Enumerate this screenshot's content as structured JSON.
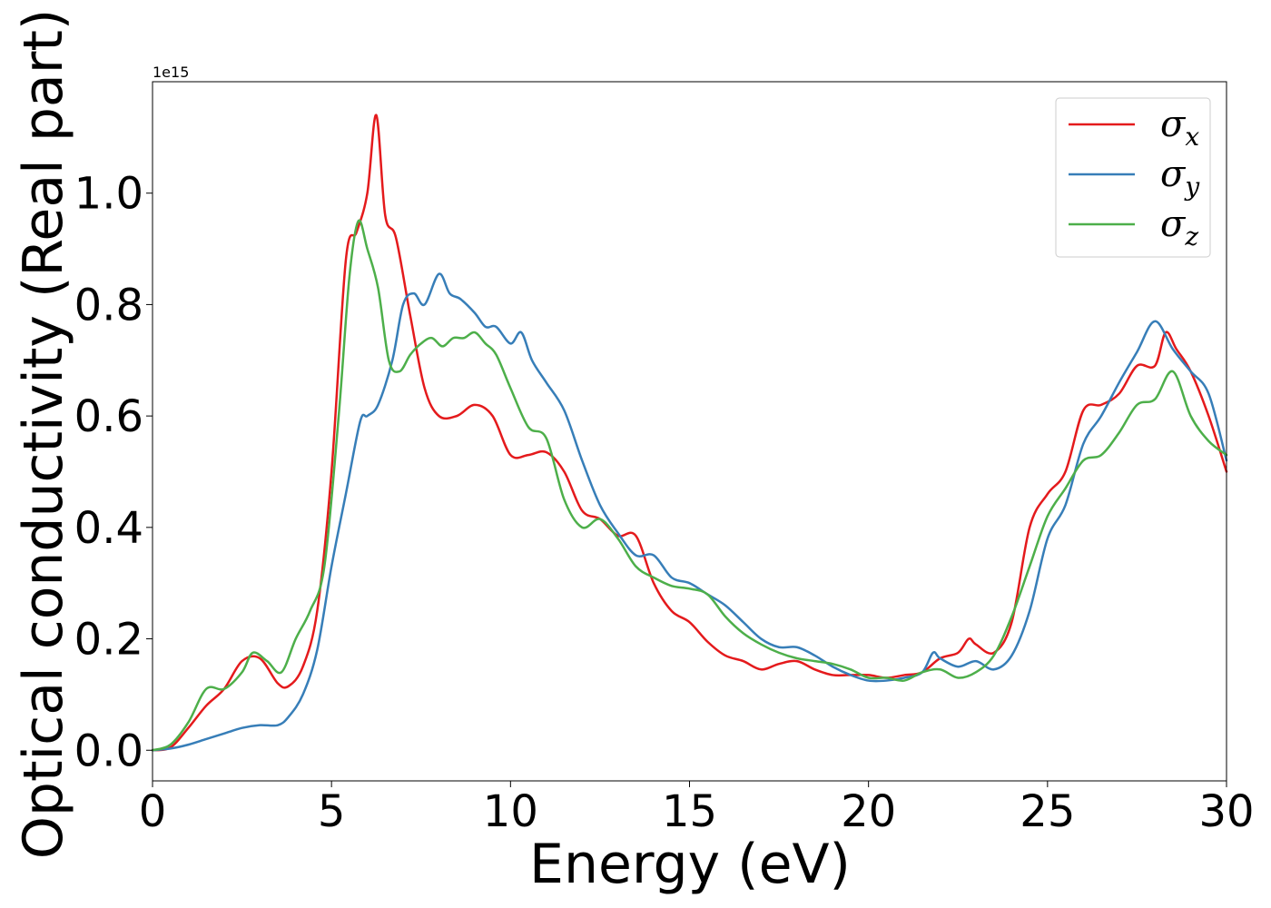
{
  "chart_data": {
    "type": "line",
    "xlabel": "Energy (eV)",
    "ylabel": "Optical conductivity (Real part)",
    "y_offset_text": "1e15",
    "xlim": [
      0,
      30
    ],
    "ylim": [
      -0.055,
      1.2
    ],
    "xticks": [
      0,
      5,
      10,
      15,
      20,
      25,
      30
    ],
    "xtick_labels": [
      "0",
      "5",
      "10",
      "15",
      "20",
      "25",
      "30"
    ],
    "yticks": [
      0.0,
      0.2,
      0.4,
      0.6,
      0.8,
      1.0
    ],
    "ytick_labels": [
      "0.0",
      "0.2",
      "0.4",
      "0.6",
      "0.8",
      "1.0"
    ],
    "grid": false,
    "legend_position": "top-right",
    "series": [
      {
        "name": "σx",
        "symbol": "σ",
        "subscript": "x",
        "color": "#e41a1c",
        "x": [
          0,
          0.5,
          1,
          1.5,
          2,
          2.5,
          3,
          3.5,
          3.8,
          4.2,
          4.6,
          5.0,
          5.4,
          5.7,
          6.0,
          6.25,
          6.5,
          6.8,
          7.2,
          7.6,
          8.0,
          8.5,
          9.0,
          9.5,
          10.0,
          10.5,
          11.0,
          11.5,
          12.0,
          12.5,
          13.0,
          13.5,
          14.0,
          14.5,
          15.0,
          15.5,
          16.0,
          16.5,
          17.0,
          17.5,
          18.0,
          18.5,
          19.0,
          19.5,
          20.0,
          20.5,
          21.0,
          21.5,
          22.0,
          22.5,
          22.8,
          23.0,
          23.5,
          24.0,
          24.5,
          25.0,
          25.5,
          26.0,
          26.5,
          27.0,
          27.5,
          28.0,
          28.3,
          28.6,
          29.0,
          29.5,
          30.0
        ],
        "y": [
          0.0,
          0.005,
          0.04,
          0.08,
          0.11,
          0.16,
          0.165,
          0.12,
          0.115,
          0.15,
          0.25,
          0.5,
          0.88,
          0.93,
          1.0,
          1.14,
          0.96,
          0.92,
          0.78,
          0.65,
          0.6,
          0.6,
          0.62,
          0.6,
          0.53,
          0.53,
          0.535,
          0.5,
          0.43,
          0.415,
          0.385,
          0.385,
          0.3,
          0.25,
          0.23,
          0.195,
          0.17,
          0.16,
          0.145,
          0.155,
          0.16,
          0.145,
          0.135,
          0.135,
          0.135,
          0.13,
          0.135,
          0.14,
          0.165,
          0.175,
          0.2,
          0.19,
          0.175,
          0.23,
          0.4,
          0.46,
          0.5,
          0.61,
          0.62,
          0.64,
          0.69,
          0.69,
          0.75,
          0.72,
          0.68,
          0.6,
          0.5
        ]
      },
      {
        "name": "σy",
        "symbol": "σ",
        "subscript": "y",
        "color": "#377eb8",
        "x": [
          0,
          0.5,
          1,
          1.5,
          2,
          2.5,
          3,
          3.5,
          3.8,
          4.2,
          4.6,
          5.0,
          5.4,
          5.8,
          6.0,
          6.3,
          6.7,
          7.0,
          7.3,
          7.6,
          8.0,
          8.3,
          8.6,
          9.0,
          9.3,
          9.6,
          10.0,
          10.3,
          10.6,
          11.0,
          11.5,
          12.0,
          12.5,
          13.0,
          13.5,
          14.0,
          14.5,
          15.0,
          15.5,
          16.0,
          16.5,
          17.0,
          17.5,
          18.0,
          18.5,
          19.0,
          19.5,
          20.0,
          20.5,
          21.0,
          21.5,
          21.8,
          22.0,
          22.5,
          23.0,
          23.5,
          24.0,
          24.5,
          25.0,
          25.5,
          26.0,
          26.5,
          27.0,
          27.5,
          28.0,
          28.5,
          29.0,
          29.5,
          30.0
        ],
        "y": [
          0.0,
          0.003,
          0.01,
          0.02,
          0.03,
          0.04,
          0.045,
          0.045,
          0.06,
          0.1,
          0.18,
          0.33,
          0.46,
          0.59,
          0.6,
          0.62,
          0.7,
          0.8,
          0.82,
          0.8,
          0.855,
          0.82,
          0.81,
          0.785,
          0.76,
          0.76,
          0.73,
          0.75,
          0.7,
          0.66,
          0.61,
          0.52,
          0.44,
          0.39,
          0.35,
          0.35,
          0.31,
          0.3,
          0.28,
          0.26,
          0.23,
          0.2,
          0.185,
          0.185,
          0.17,
          0.15,
          0.135,
          0.125,
          0.125,
          0.13,
          0.14,
          0.175,
          0.165,
          0.15,
          0.16,
          0.145,
          0.17,
          0.25,
          0.38,
          0.44,
          0.55,
          0.6,
          0.66,
          0.715,
          0.77,
          0.72,
          0.68,
          0.64,
          0.52
        ]
      },
      {
        "name": "σz",
        "symbol": "σ",
        "subscript": "z",
        "color": "#4daf4a",
        "x": [
          0,
          0.5,
          1,
          1.5,
          2,
          2.5,
          2.8,
          3.2,
          3.6,
          4.0,
          4.4,
          4.8,
          5.2,
          5.5,
          5.75,
          6.0,
          6.3,
          6.6,
          6.9,
          7.2,
          7.5,
          7.8,
          8.1,
          8.4,
          8.7,
          9.0,
          9.3,
          9.6,
          10.0,
          10.5,
          11.0,
          11.5,
          12.0,
          12.5,
          13.0,
          13.5,
          14.0,
          14.5,
          15.0,
          15.5,
          16.0,
          16.5,
          17.0,
          17.5,
          18.0,
          18.5,
          19.0,
          19.5,
          20.0,
          20.5,
          21.0,
          21.5,
          22.0,
          22.5,
          23.0,
          23.5,
          24.0,
          24.5,
          25.0,
          25.5,
          26.0,
          26.5,
          27.0,
          27.5,
          28.0,
          28.5,
          29.0,
          29.5,
          30.0
        ],
        "y": [
          0.0,
          0.01,
          0.05,
          0.11,
          0.11,
          0.14,
          0.175,
          0.16,
          0.14,
          0.2,
          0.25,
          0.33,
          0.6,
          0.85,
          0.95,
          0.9,
          0.83,
          0.7,
          0.68,
          0.71,
          0.73,
          0.74,
          0.725,
          0.74,
          0.74,
          0.75,
          0.73,
          0.71,
          0.65,
          0.58,
          0.56,
          0.45,
          0.4,
          0.415,
          0.38,
          0.33,
          0.31,
          0.295,
          0.29,
          0.28,
          0.24,
          0.21,
          0.19,
          0.175,
          0.165,
          0.16,
          0.155,
          0.145,
          0.13,
          0.13,
          0.125,
          0.14,
          0.145,
          0.13,
          0.14,
          0.17,
          0.24,
          0.33,
          0.42,
          0.47,
          0.52,
          0.53,
          0.57,
          0.62,
          0.63,
          0.68,
          0.6,
          0.555,
          0.53
        ]
      }
    ]
  }
}
